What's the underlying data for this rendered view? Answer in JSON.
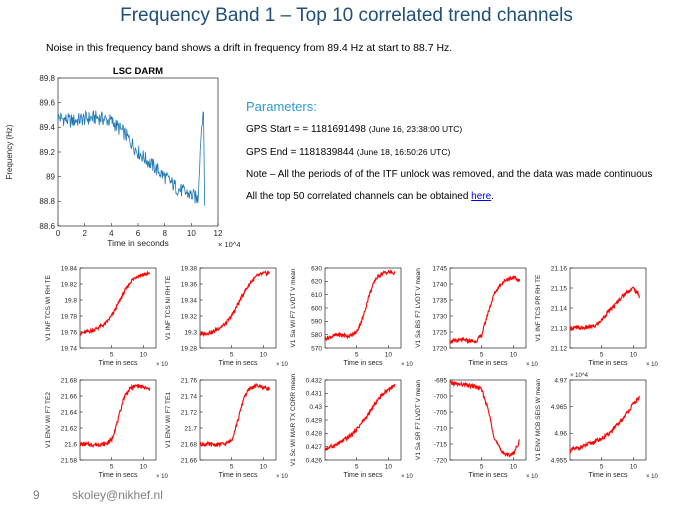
{
  "slide": {
    "title": "Frequency Band 1 – Top 10 correlated trend channels",
    "subtitle": "Noise in this frequency band shows a drift in frequency from 89.4 Hz at start to 88.7 Hz.",
    "page_number": "9",
    "author_email": "skoley@nikhef.nl"
  },
  "parameters": {
    "heading": "Parameters:",
    "gps_start_label": "GPS Start =  = 1181691498",
    "gps_start_date": "(June 16, 23:38:00 UTC)",
    "gps_end_label": "GPS End = 1181839844",
    "gps_end_date": "(June 18, 16:50:26 UTC)",
    "note": "Note – All the periods of of the ITF unlock was removed, and the data was made continuous",
    "top50_text": "All the top 50 correlated channels can be obtained ",
    "top50_link": "here",
    "top50_suffix": "."
  },
  "chart_data": [
    {
      "type": "line",
      "title": "LSC DARM",
      "xlabel": "Time in seconds",
      "ylabel": "Frequency (Hz)",
      "x_multiplier": "× 10^4",
      "xlim": [
        0,
        12
      ],
      "ylim": [
        88.6,
        89.8
      ],
      "xticks": [
        "0",
        "2",
        "4",
        "6",
        "8",
        "10",
        "12"
      ],
      "yticks": [
        "88.6",
        "88.8",
        "89",
        "89.2",
        "89.4",
        "89.6",
        "89.8"
      ],
      "color": "#1f77b4",
      "series": [
        {
          "x": [
            0,
            1,
            2,
            3,
            4,
            5,
            6,
            7,
            8,
            9,
            10,
            10.5,
            10.7,
            10.9,
            11
          ],
          "y": [
            89.48,
            89.45,
            89.47,
            89.48,
            89.45,
            89.35,
            89.2,
            89.1,
            89.0,
            88.9,
            88.85,
            88.82,
            89.3,
            89.58,
            88.8
          ]
        }
      ]
    },
    {
      "type": "line",
      "ylabel": "V1 INF TCS WI RH TE",
      "xlabel": "Time in secs",
      "x_multiplier": "× 10^4",
      "xlim": [
        0,
        12
      ],
      "ylim": [
        19.74,
        19.84
      ],
      "xticks": [
        "5",
        "10"
      ],
      "yticks": [
        "19.74",
        "19.76",
        "19.78",
        "19.8",
        "19.82",
        "19.84"
      ],
      "color": "#ff0000",
      "series": [
        {
          "x": [
            0,
            2,
            4,
            5,
            6,
            7,
            8,
            9,
            10,
            11
          ],
          "y": [
            19.758,
            19.762,
            19.77,
            19.78,
            19.795,
            19.81,
            19.823,
            19.83,
            19.832,
            19.833
          ]
        }
      ]
    },
    {
      "type": "line",
      "ylabel": "V1 INF TCS NI RH TE",
      "xlabel": "Time in secs",
      "x_multiplier": "× 10^4",
      "xlim": [
        0,
        12
      ],
      "ylim": [
        19.28,
        19.38
      ],
      "xticks": [
        "5",
        "10"
      ],
      "yticks": [
        "19.28",
        "19.3",
        "19.32",
        "19.34",
        "19.36",
        "19.38"
      ],
      "color": "#ff0000",
      "series": [
        {
          "x": [
            0,
            2,
            4,
            5,
            6,
            7,
            8,
            9,
            10,
            11
          ],
          "y": [
            19.297,
            19.3,
            19.31,
            19.32,
            19.335,
            19.35,
            19.362,
            19.37,
            19.373,
            19.374
          ]
        }
      ]
    },
    {
      "type": "line",
      "ylabel": "V1 Sa WI F7 LVDT V mean",
      "xlabel": "Time in secs",
      "x_multiplier": "× 10^4",
      "xlim": [
        0,
        12
      ],
      "ylim": [
        570,
        630
      ],
      "xticks": [
        "5",
        "10"
      ],
      "yticks": [
        "570",
        "580",
        "590",
        "600",
        "610",
        "620",
        "630"
      ],
      "color": "#ff0000",
      "series": [
        {
          "x": [
            0,
            2,
            4,
            5,
            6,
            7,
            8,
            9,
            10,
            11
          ],
          "y": [
            577,
            580,
            579,
            582,
            593,
            610,
            622,
            626,
            627,
            626
          ]
        }
      ]
    },
    {
      "type": "line",
      "ylabel": "V1 Sa BS F7 LVDT V mean",
      "xlabel": "Time in secs",
      "x_multiplier": "× 10^4",
      "xlim": [
        0,
        12
      ],
      "ylim": [
        1720,
        1745
      ],
      "xticks": [
        "5",
        "10"
      ],
      "yticks": [
        "1720",
        "1725",
        "1730",
        "1735",
        "1740",
        "1745"
      ],
      "color": "#ff0000",
      "series": [
        {
          "x": [
            0,
            2,
            4,
            5,
            6,
            7,
            8,
            9,
            10,
            11
          ],
          "y": [
            1722,
            1722.5,
            1722,
            1724,
            1731,
            1737,
            1740,
            1741.5,
            1742,
            1741
          ]
        }
      ]
    },
    {
      "type": "line",
      "ylabel": "V1 INF TCS PR RH TE",
      "xlabel": "Time in secs",
      "x_multiplier": "× 10^4",
      "xlim": [
        0,
        12
      ],
      "ylim": [
        21.12,
        21.16
      ],
      "xticks": [
        "5",
        "10"
      ],
      "yticks": [
        "21.12",
        "21.13",
        "21.14",
        "21.15",
        "21.16"
      ],
      "color": "#ff0000",
      "series": [
        {
          "x": [
            0,
            2,
            4,
            5,
            6,
            7,
            8,
            9,
            10,
            11
          ],
          "y": [
            21.13,
            21.13,
            21.131,
            21.134,
            21.138,
            21.141,
            21.145,
            21.148,
            21.15,
            21.146
          ]
        }
      ]
    },
    {
      "type": "line",
      "ylabel": "V1 ENV WI F7 TE2",
      "xlabel": "Time in secs",
      "x_multiplier": "× 10^4",
      "xlim": [
        0,
        12
      ],
      "ylim": [
        21.58,
        21.68
      ],
      "xticks": [
        "5",
        "10"
      ],
      "yticks": [
        "21.58",
        "21.6",
        "21.62",
        "21.64",
        "21.66",
        "21.68"
      ],
      "color": "#ff0000",
      "series": [
        {
          "x": [
            0,
            2,
            4,
            5,
            6,
            7,
            8,
            9,
            10,
            11
          ],
          "y": [
            21.6,
            21.599,
            21.6,
            21.605,
            21.63,
            21.66,
            21.67,
            21.673,
            21.671,
            21.668
          ]
        }
      ]
    },
    {
      "type": "line",
      "ylabel": "V1 ENV WI F7 TE1",
      "xlabel": "Time in secs",
      "x_multiplier": "× 10^4",
      "xlim": [
        0,
        12
      ],
      "ylim": [
        21.66,
        21.76
      ],
      "xticks": [
        "5",
        "10"
      ],
      "yticks": [
        "21.66",
        "21.68",
        "21.7",
        "21.72",
        "21.74",
        "21.76"
      ],
      "color": "#ff0000",
      "series": [
        {
          "x": [
            0,
            2,
            4,
            5,
            6,
            7,
            8,
            9,
            10,
            11
          ],
          "y": [
            21.68,
            21.679,
            21.68,
            21.685,
            21.71,
            21.74,
            21.75,
            21.753,
            21.751,
            21.749
          ]
        }
      ]
    },
    {
      "type": "line",
      "ylabel": "V1 Sc WI MAR TX CORR mean",
      "xlabel": "Time in secs",
      "x_multiplier": "× 10^4",
      "xlim": [
        0,
        12
      ],
      "ylim": [
        0.426,
        0.432
      ],
      "xticks": [
        "5",
        "10"
      ],
      "yticks": [
        "0.426",
        "0.427",
        "0.428",
        "0.429",
        "0.43",
        "0.431",
        "0.432"
      ],
      "color": "#ff0000",
      "series": [
        {
          "x": [
            0,
            2,
            4,
            5,
            6,
            7,
            8,
            9,
            10,
            11
          ],
          "y": [
            0.4268,
            0.4272,
            0.4278,
            0.4283,
            0.4289,
            0.4295,
            0.4303,
            0.4309,
            0.4313,
            0.4316
          ]
        }
      ]
    },
    {
      "type": "line",
      "ylabel": "V1 Sa SR F7 LVDT V mean",
      "xlabel": "Time in secs",
      "x_multiplier": "× 10^4",
      "xlim": [
        0,
        12
      ],
      "ylim": [
        -720,
        -695
      ],
      "xticks": [
        "5",
        "10"
      ],
      "yticks": [
        "-720",
        "-715",
        "-710",
        "-705",
        "-700",
        "-695"
      ],
      "color": "#ff0000",
      "series": [
        {
          "x": [
            0,
            2,
            4,
            5,
            6,
            7,
            8,
            9,
            10,
            11
          ],
          "y": [
            -696,
            -696.5,
            -697,
            -698,
            -704,
            -713,
            -717,
            -718.5,
            -718,
            -714
          ]
        }
      ]
    },
    {
      "type": "line",
      "ylabel": "V1 ENV MCB SEIS W mean",
      "xlabel": "Time in secs",
      "x_multiplier": "× 10^4",
      "y_multiplier": "× 10^4",
      "xlim": [
        0,
        12
      ],
      "ylim": [
        4.955,
        4.97
      ],
      "xticks": [
        "5",
        "10"
      ],
      "yticks": [
        "4.955",
        "4.96",
        "4.965",
        "4.97"
      ],
      "color": "#ff0000",
      "series": [
        {
          "x": [
            0,
            2,
            4,
            5,
            6,
            7,
            8,
            9,
            10,
            11
          ],
          "y": [
            4.9568,
            4.9575,
            4.9585,
            4.959,
            4.9598,
            4.961,
            4.9622,
            4.9638,
            4.9655,
            4.9668
          ]
        }
      ]
    }
  ]
}
